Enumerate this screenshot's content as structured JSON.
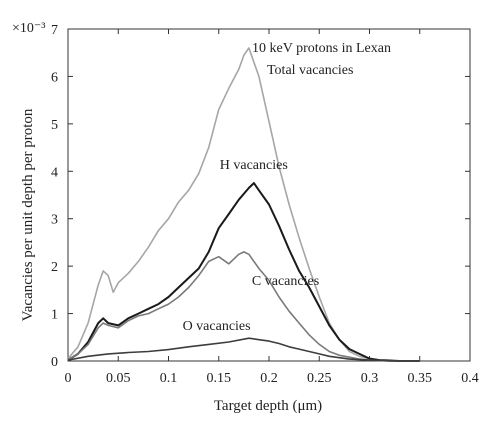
{
  "chart_data": {
    "type": "line",
    "title": "10 keV protons in Lexan",
    "xlabel": "Target depth (μm)",
    "ylabel": "Vacancies per unit depth per proton",
    "y_multiplier": "×10⁻³",
    "xlim": [
      0,
      0.4
    ],
    "ylim": [
      0,
      7
    ],
    "x_ticks": [
      0,
      0.05,
      0.1,
      0.15,
      0.2,
      0.25,
      0.3,
      0.35,
      0.4
    ],
    "x_tick_labels": [
      "0",
      "0.05",
      "0.1",
      "0.15",
      "0.2",
      "0.25",
      "0.3",
      "0.35",
      "0.4"
    ],
    "y_ticks": [
      0,
      1,
      2,
      3,
      4,
      5,
      6,
      7
    ],
    "y_tick_labels": [
      "0",
      "1",
      "2",
      "3",
      "4",
      "5",
      "6",
      "7"
    ],
    "grid": false,
    "legend": "none (inline annotations)",
    "series": [
      {
        "name": "Total vacancies",
        "color": "#a6a6a6",
        "x": [
          0,
          0.01,
          0.02,
          0.03,
          0.035,
          0.04,
          0.045,
          0.05,
          0.06,
          0.07,
          0.08,
          0.09,
          0.1,
          0.11,
          0.12,
          0.13,
          0.14,
          0.15,
          0.16,
          0.17,
          0.175,
          0.18,
          0.19,
          0.2,
          0.21,
          0.22,
          0.23,
          0.24,
          0.25,
          0.26,
          0.27,
          0.28,
          0.29,
          0.3,
          0.31,
          0.32,
          0.33,
          0.34,
          0.35
        ],
        "y": [
          0.05,
          0.3,
          0.8,
          1.6,
          1.9,
          1.8,
          1.45,
          1.65,
          1.85,
          2.1,
          2.4,
          2.75,
          3.0,
          3.35,
          3.6,
          3.95,
          4.5,
          5.3,
          5.75,
          6.15,
          6.45,
          6.6,
          6.0,
          5.05,
          4.1,
          3.3,
          2.6,
          1.95,
          1.35,
          0.8,
          0.45,
          0.2,
          0.1,
          0.05,
          0.02,
          0.01,
          0,
          0,
          0
        ]
      },
      {
        "name": "H vacancies",
        "color": "#1a1a1a",
        "x": [
          0,
          0.01,
          0.02,
          0.03,
          0.035,
          0.04,
          0.05,
          0.06,
          0.07,
          0.08,
          0.09,
          0.1,
          0.11,
          0.12,
          0.13,
          0.14,
          0.15,
          0.16,
          0.17,
          0.18,
          0.185,
          0.19,
          0.2,
          0.21,
          0.22,
          0.23,
          0.24,
          0.25,
          0.26,
          0.27,
          0.28,
          0.29,
          0.3,
          0.31,
          0.32,
          0.33,
          0.34,
          0.35
        ],
        "y": [
          0.02,
          0.15,
          0.4,
          0.8,
          0.9,
          0.8,
          0.75,
          0.9,
          1.0,
          1.1,
          1.2,
          1.35,
          1.55,
          1.75,
          1.95,
          2.3,
          2.8,
          3.1,
          3.4,
          3.65,
          3.75,
          3.6,
          3.3,
          2.85,
          2.35,
          1.9,
          1.55,
          1.15,
          0.75,
          0.45,
          0.25,
          0.15,
          0.05,
          0.02,
          0.01,
          0,
          0,
          0
        ]
      },
      {
        "name": "C vacancies",
        "color": "#7a7a7a",
        "x": [
          0,
          0.01,
          0.02,
          0.03,
          0.035,
          0.04,
          0.05,
          0.06,
          0.07,
          0.08,
          0.09,
          0.1,
          0.11,
          0.12,
          0.13,
          0.14,
          0.15,
          0.16,
          0.17,
          0.175,
          0.18,
          0.19,
          0.2,
          0.21,
          0.22,
          0.23,
          0.24,
          0.25,
          0.26,
          0.27,
          0.28,
          0.29,
          0.3,
          0.31,
          0.32,
          0.33,
          0.34,
          0.35
        ],
        "y": [
          0.02,
          0.15,
          0.35,
          0.7,
          0.8,
          0.75,
          0.7,
          0.85,
          0.95,
          1.0,
          1.1,
          1.2,
          1.35,
          1.55,
          1.8,
          2.1,
          2.2,
          2.05,
          2.25,
          2.3,
          2.25,
          1.95,
          1.7,
          1.35,
          1.05,
          0.8,
          0.55,
          0.35,
          0.2,
          0.12,
          0.08,
          0.04,
          0.02,
          0.01,
          0,
          0,
          0,
          0
        ]
      },
      {
        "name": "O vacancies",
        "color": "#3d3d3d",
        "x": [
          0,
          0.02,
          0.04,
          0.06,
          0.08,
          0.1,
          0.12,
          0.14,
          0.16,
          0.18,
          0.19,
          0.2,
          0.21,
          0.22,
          0.23,
          0.24,
          0.25,
          0.26,
          0.27,
          0.28,
          0.29,
          0.3,
          0.31,
          0.32,
          0.35
        ],
        "y": [
          0.02,
          0.1,
          0.15,
          0.18,
          0.2,
          0.24,
          0.3,
          0.35,
          0.4,
          0.48,
          0.45,
          0.42,
          0.37,
          0.3,
          0.25,
          0.2,
          0.15,
          0.1,
          0.07,
          0.04,
          0.03,
          0.02,
          0.01,
          0,
          0
        ]
      }
    ],
    "annotations": [
      {
        "text": "Total vacancies",
        "x": 0.198,
        "y": 6.05
      },
      {
        "text": "H vacancies",
        "x": 0.151,
        "y": 4.05
      },
      {
        "text": "C vacancies",
        "x": 0.183,
        "y": 1.6
      },
      {
        "text": "O vacancies",
        "x": 0.114,
        "y": 0.65
      }
    ]
  }
}
